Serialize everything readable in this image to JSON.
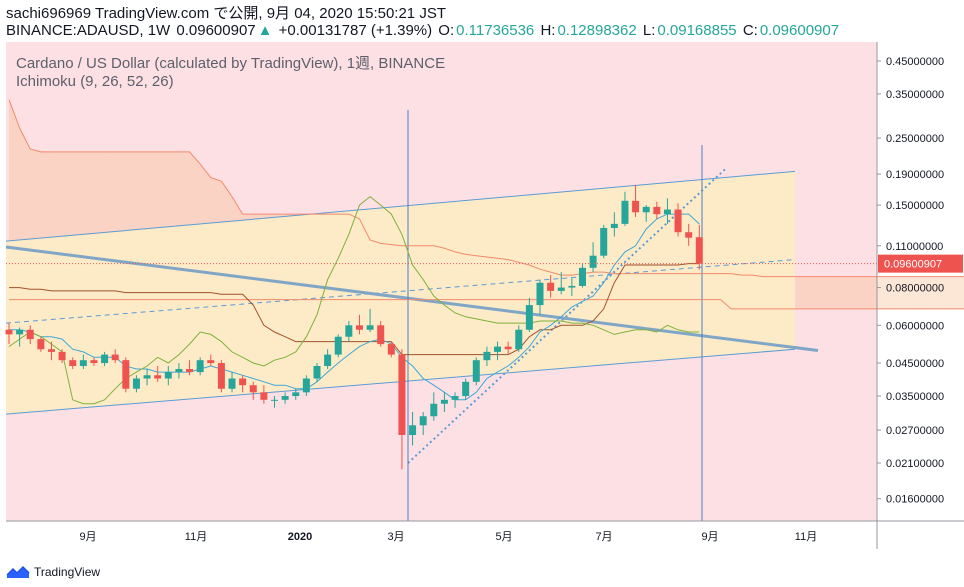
{
  "header": {
    "line1": "sachi696969 TradingView.com で公開, 9月 04, 2020 15:50:21 JST",
    "symbol": "BINANCE:ADAUSD, 1W",
    "price": "0.09600907",
    "change": "+0.00131787 (+1.39%)",
    "o_label": "O:",
    "o_value": "0.11736536",
    "h_label": "H:",
    "h_value": "0.12898362",
    "l_label": "L:",
    "l_value": "0.09168855",
    "c_label": "C:",
    "c_value": "0.09600907"
  },
  "legend": {
    "title": "Cardano / US Dollar (calculated by TradingView), 1週, BINANCE",
    "indicator": "Ichimoku (9, 26, 52, 26)"
  },
  "footer": {
    "brand": "TradingView"
  },
  "colors": {
    "up": "#26a69a",
    "down": "#ef5350",
    "bg_bull": "#fdecc5",
    "bg_bear": "#fde0e4"
  },
  "chart_data": {
    "type": "candlestick",
    "yscale": "log",
    "ylim": [
      0.0135,
      0.52
    ],
    "price_ticks": [
      "0.45000000",
      "0.35000000",
      "0.25000000",
      "0.19000000",
      "0.15000000",
      "0.11000000",
      "0.08000000",
      "0.06000000",
      "0.04500000",
      "0.03500000",
      "0.02700000",
      "0.02100000",
      "0.01600000"
    ],
    "current_price_label": "0.09600907",
    "time_ticks": [
      "9月",
      "11月",
      "2020",
      "3月",
      "5月",
      "7月",
      "9月",
      "11月"
    ],
    "candles": [
      [
        0.058,
        0.061,
        0.052,
        0.056
      ],
      [
        0.056,
        0.059,
        0.051,
        0.058
      ],
      [
        0.058,
        0.06,
        0.052,
        0.054
      ],
      [
        0.054,
        0.055,
        0.049,
        0.05
      ],
      [
        0.05,
        0.053,
        0.046,
        0.049
      ],
      [
        0.049,
        0.05,
        0.045,
        0.046
      ],
      [
        0.046,
        0.047,
        0.043,
        0.044
      ],
      [
        0.044,
        0.048,
        0.043,
        0.046
      ],
      [
        0.046,
        0.047,
        0.044,
        0.045
      ],
      [
        0.045,
        0.049,
        0.044,
        0.048
      ],
      [
        0.048,
        0.05,
        0.045,
        0.046
      ],
      [
        0.046,
        0.047,
        0.036,
        0.037
      ],
      [
        0.037,
        0.041,
        0.036,
        0.04
      ],
      [
        0.04,
        0.043,
        0.038,
        0.041
      ],
      [
        0.041,
        0.044,
        0.039,
        0.04
      ],
      [
        0.04,
        0.044,
        0.038,
        0.042
      ],
      [
        0.042,
        0.045,
        0.04,
        0.043
      ],
      [
        0.043,
        0.046,
        0.041,
        0.042
      ],
      [
        0.042,
        0.047,
        0.041,
        0.046
      ],
      [
        0.046,
        0.048,
        0.044,
        0.045
      ],
      [
        0.045,
        0.046,
        0.036,
        0.037
      ],
      [
        0.037,
        0.042,
        0.036,
        0.04
      ],
      [
        0.04,
        0.041,
        0.036,
        0.038
      ],
      [
        0.038,
        0.039,
        0.034,
        0.036
      ],
      [
        0.036,
        0.038,
        0.033,
        0.034
      ],
      [
        0.034,
        0.035,
        0.032,
        0.034
      ],
      [
        0.034,
        0.036,
        0.033,
        0.035
      ],
      [
        0.035,
        0.037,
        0.034,
        0.036
      ],
      [
        0.036,
        0.041,
        0.035,
        0.04
      ],
      [
        0.04,
        0.045,
        0.039,
        0.044
      ],
      [
        0.044,
        0.05,
        0.043,
        0.048
      ],
      [
        0.048,
        0.056,
        0.047,
        0.055
      ],
      [
        0.055,
        0.062,
        0.053,
        0.06
      ],
      [
        0.06,
        0.065,
        0.056,
        0.058
      ],
      [
        0.058,
        0.068,
        0.057,
        0.06
      ],
      [
        0.06,
        0.062,
        0.051,
        0.052
      ],
      [
        0.052,
        0.053,
        0.047,
        0.048
      ],
      [
        0.048,
        0.05,
        0.02,
        0.026
      ],
      [
        0.026,
        0.031,
        0.024,
        0.028
      ],
      [
        0.028,
        0.031,
        0.026,
        0.03
      ],
      [
        0.03,
        0.036,
        0.029,
        0.033
      ],
      [
        0.033,
        0.036,
        0.031,
        0.034
      ],
      [
        0.034,
        0.036,
        0.032,
        0.035
      ],
      [
        0.035,
        0.04,
        0.034,
        0.039
      ],
      [
        0.039,
        0.047,
        0.038,
        0.046
      ],
      [
        0.046,
        0.051,
        0.044,
        0.049
      ],
      [
        0.049,
        0.053,
        0.046,
        0.051
      ],
      [
        0.051,
        0.053,
        0.048,
        0.05
      ],
      [
        0.05,
        0.06,
        0.049,
        0.058
      ],
      [
        0.058,
        0.074,
        0.057,
        0.07
      ],
      [
        0.07,
        0.085,
        0.065,
        0.083
      ],
      [
        0.083,
        0.088,
        0.074,
        0.078
      ],
      [
        0.078,
        0.09,
        0.076,
        0.08
      ],
      [
        0.08,
        0.086,
        0.075,
        0.081
      ],
      [
        0.081,
        0.096,
        0.08,
        0.093
      ],
      [
        0.093,
        0.113,
        0.09,
        0.102
      ],
      [
        0.102,
        0.129,
        0.1,
        0.126
      ],
      [
        0.126,
        0.142,
        0.118,
        0.13
      ],
      [
        0.13,
        0.166,
        0.128,
        0.155
      ],
      [
        0.155,
        0.175,
        0.137,
        0.142
      ],
      [
        0.142,
        0.15,
        0.132,
        0.148
      ],
      [
        0.148,
        0.154,
        0.135,
        0.14
      ],
      [
        0.14,
        0.158,
        0.13,
        0.145
      ],
      [
        0.145,
        0.152,
        0.118,
        0.122
      ],
      [
        0.122,
        0.13,
        0.11,
        0.117
      ],
      [
        0.1174,
        0.129,
        0.0917,
        0.096
      ]
    ],
    "tenkan": [
      0.058,
      0.058,
      0.057,
      0.055,
      0.055,
      0.054,
      0.05,
      0.049,
      0.047,
      0.047,
      0.047,
      0.044,
      0.043,
      0.043,
      0.042,
      0.042,
      0.042,
      0.042,
      0.043,
      0.044,
      0.043,
      0.042,
      0.041,
      0.04,
      0.039,
      0.038,
      0.038,
      0.037,
      0.037,
      0.039,
      0.042,
      0.045,
      0.048,
      0.051,
      0.053,
      0.054,
      0.052,
      0.047,
      0.044,
      0.04,
      0.038,
      0.036,
      0.034,
      0.034,
      0.036,
      0.04,
      0.042,
      0.044,
      0.047,
      0.051,
      0.057,
      0.06,
      0.064,
      0.069,
      0.072,
      0.075,
      0.083,
      0.095,
      0.105,
      0.11,
      0.125,
      0.135,
      0.14,
      0.14,
      0.14,
      0.13
    ],
    "kijun": [
      0.08,
      0.08,
      0.079,
      0.079,
      0.078,
      0.078,
      0.078,
      0.078,
      0.078,
      0.078,
      0.078,
      0.077,
      0.077,
      0.077,
      0.077,
      0.077,
      0.077,
      0.077,
      0.077,
      0.077,
      0.076,
      0.076,
      0.076,
      0.07,
      0.06,
      0.057,
      0.055,
      0.053,
      0.053,
      0.053,
      0.053,
      0.053,
      0.053,
      0.053,
      0.053,
      0.053,
      0.053,
      0.048,
      0.048,
      0.048,
      0.048,
      0.048,
      0.048,
      0.048,
      0.048,
      0.048,
      0.048,
      0.048,
      0.05,
      0.055,
      0.058,
      0.058,
      0.06,
      0.06,
      0.06,
      0.062,
      0.068,
      0.083,
      0.095,
      0.095,
      0.095,
      0.095,
      0.095,
      0.095,
      0.096,
      0.096
    ],
    "span_a": [
      0.335,
      0.27,
      0.23,
      0.225,
      0.225,
      0.225,
      0.225,
      0.225,
      0.225,
      0.225,
      0.225,
      0.225,
      0.225,
      0.225,
      0.225,
      0.225,
      0.225,
      0.225,
      0.205,
      0.185,
      0.18,
      0.16,
      0.14,
      0.14,
      0.14,
      0.14,
      0.14,
      0.14,
      0.14,
      0.14,
      0.14,
      0.14,
      0.14,
      0.135,
      0.115,
      0.112,
      0.111,
      0.11,
      0.11,
      0.11,
      0.11,
      0.108,
      0.105,
      0.103,
      0.102,
      0.101,
      0.1,
      0.099,
      0.097,
      0.095,
      0.092,
      0.09,
      0.088,
      0.088,
      0.089,
      0.09,
      0.09,
      0.089,
      0.089,
      0.089,
      0.089,
      0.089,
      0.089,
      0.089,
      0.089,
      0.089,
      0.089,
      0.089,
      0.089,
      0.088,
      0.088,
      0.087,
      0.087,
      0.087,
      0.087,
      0.087,
      0.087,
      0.087,
      0.087,
      0.087,
      0.087,
      0.087,
      0.087,
      0.087,
      0.087,
      0.087,
      0.087,
      0.087,
      0.087,
      0.087,
      0.087
    ],
    "span_b": [
      0.073,
      0.073,
      0.073,
      0.073,
      0.073,
      0.073,
      0.073,
      0.073,
      0.073,
      0.073,
      0.073,
      0.073,
      0.073,
      0.073,
      0.073,
      0.073,
      0.073,
      0.073,
      0.073,
      0.073,
      0.073,
      0.073,
      0.073,
      0.073,
      0.073,
      0.073,
      0.073,
      0.073,
      0.073,
      0.073,
      0.073,
      0.073,
      0.073,
      0.073,
      0.073,
      0.073,
      0.073,
      0.073,
      0.073,
      0.073,
      0.073,
      0.073,
      0.073,
      0.073,
      0.073,
      0.073,
      0.073,
      0.073,
      0.073,
      0.073,
      0.073,
      0.073,
      0.073,
      0.073,
      0.073,
      0.073,
      0.073,
      0.073,
      0.073,
      0.073,
      0.073,
      0.073,
      0.073,
      0.073,
      0.073,
      0.073,
      0.073,
      0.073,
      0.068,
      0.068,
      0.068,
      0.068,
      0.068,
      0.068,
      0.068,
      0.068,
      0.068,
      0.068,
      0.068,
      0.068,
      0.068,
      0.068,
      0.068,
      0.068,
      0.068,
      0.068,
      0.068,
      0.068,
      0.068,
      0.068,
      0.068
    ],
    "chikou": [
      0.051,
      0.054,
      0.057,
      0.055,
      0.052,
      0.049,
      0.034,
      0.033,
      0.033,
      0.034,
      0.037,
      0.04,
      0.042,
      0.044,
      0.047,
      0.045,
      0.048,
      0.052,
      0.057,
      0.056,
      0.053,
      0.049,
      0.047,
      0.045,
      0.044,
      0.046,
      0.047,
      0.049,
      0.055,
      0.065,
      0.085,
      0.1,
      0.12,
      0.15,
      0.16,
      0.15,
      0.14,
      0.12,
      0.095,
      0.085,
      0.075,
      0.07,
      0.066,
      0.064,
      0.063,
      0.062,
      0.061,
      0.061,
      0.061,
      0.061,
      0.062,
      0.062,
      0.062,
      0.061,
      0.061,
      0.06,
      0.058,
      0.056,
      0.057,
      0.058,
      0.058,
      0.057,
      0.06,
      0.058,
      0.057,
      0.057
    ]
  }
}
